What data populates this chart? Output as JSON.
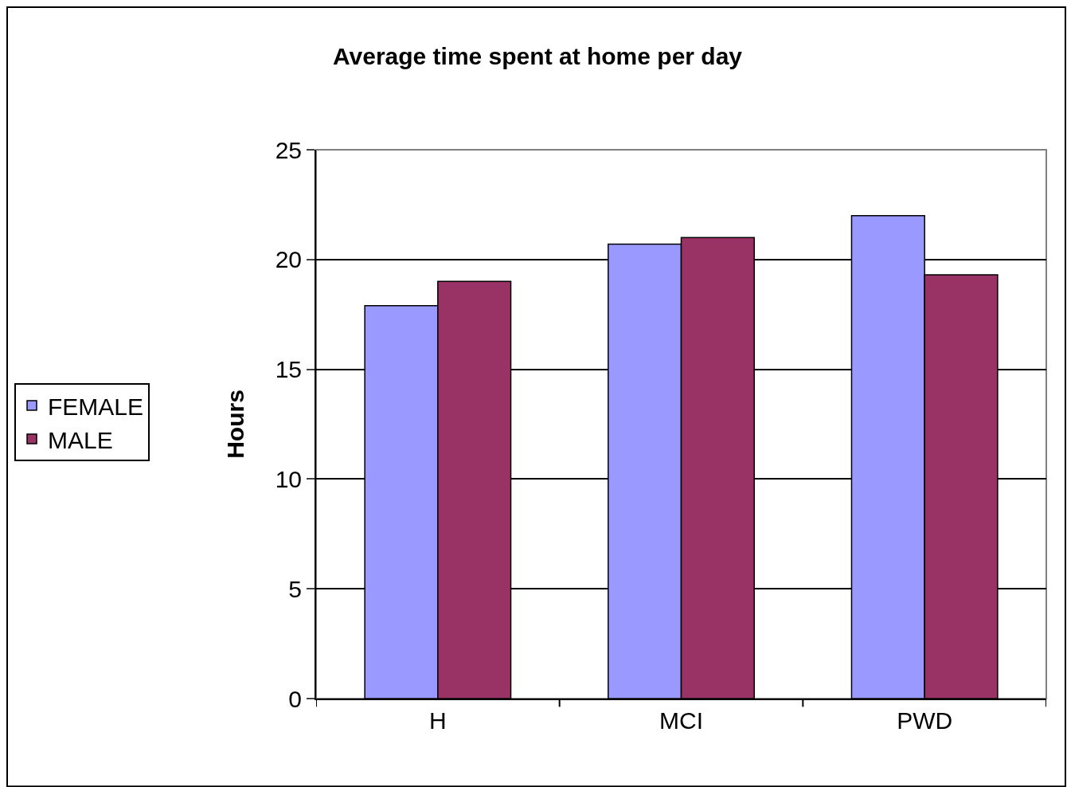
{
  "chart_data": {
    "type": "bar",
    "title": "Average time spent at home per day",
    "ylabel": "Hours",
    "categories": [
      "H",
      "MCI",
      "PWD"
    ],
    "series": [
      {
        "name": "FEMALE",
        "color": "#9999ff",
        "values": [
          17.9,
          20.7,
          22.0
        ]
      },
      {
        "name": "MALE",
        "color": "#993366",
        "values": [
          19.0,
          21.0,
          19.3
        ]
      }
    ],
    "ylim": [
      0,
      25
    ],
    "yticks": [
      0,
      5,
      10,
      15,
      20,
      25
    ],
    "grid": "y",
    "legend": "left"
  }
}
